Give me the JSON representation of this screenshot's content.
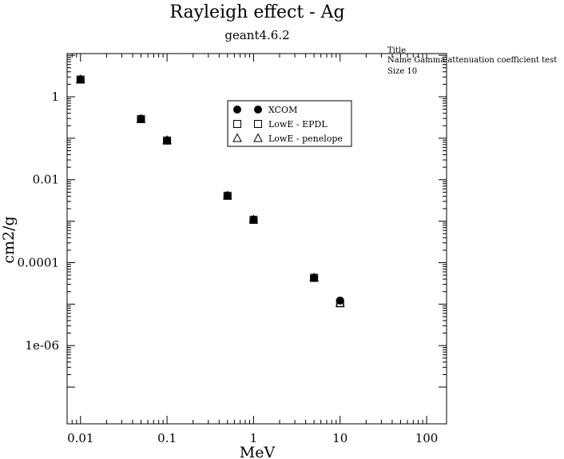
{
  "chart_data": {
    "type": "scatter",
    "title": "Rayleigh effect - Ag",
    "subtitle": "geant4.6.2",
    "xlabel": "MeV",
    "ylabel": "cm2/g",
    "x_scale": "log",
    "y_scale": "log",
    "xlim": [
      0.007,
      170
    ],
    "ylim": [
      1.3e-08,
      11
    ],
    "x_ticks": [
      0.01,
      0.1,
      1,
      10,
      100
    ],
    "x_tick_labels": [
      "0.01",
      "0.1",
      "1",
      "10",
      "100"
    ],
    "y_ticks": [
      1e-06,
      0.0001,
      0.01,
      1
    ],
    "y_tick_labels": [
      "1e-06",
      "0.0001",
      "0.01",
      "1"
    ],
    "grid": false,
    "legend_position": "top-center",
    "series": [
      {
        "name": "XCOM",
        "marker": "circle",
        "filled": true,
        "x": [
          0.01,
          0.05,
          0.1,
          0.5,
          1,
          5,
          10
        ],
        "y": [
          2.6,
          0.29,
          0.088,
          0.0041,
          0.00108,
          4.3e-05,
          1.22e-05
        ]
      },
      {
        "name": "LowE - EPDL",
        "marker": "square",
        "filled": false,
        "x": [
          0.01,
          0.05,
          0.1,
          0.5,
          1,
          5,
          10
        ],
        "y": [
          2.6,
          0.29,
          0.088,
          0.0041,
          0.00108,
          4.3e-05,
          1.05e-05
        ]
      },
      {
        "name": "LowE - penelope",
        "marker": "triangle",
        "filled": false,
        "x": [
          0.01,
          0.05,
          0.1,
          0.5,
          1,
          5,
          10
        ],
        "y": [
          2.6,
          0.29,
          0.088,
          0.0041,
          0.00108,
          4.3e-05,
          1.05e-05
        ]
      }
    ]
  },
  "annotation": {
    "lines": [
      "Title",
      "Name  Gamma attenuation coefficient test",
      "Size  10"
    ]
  }
}
